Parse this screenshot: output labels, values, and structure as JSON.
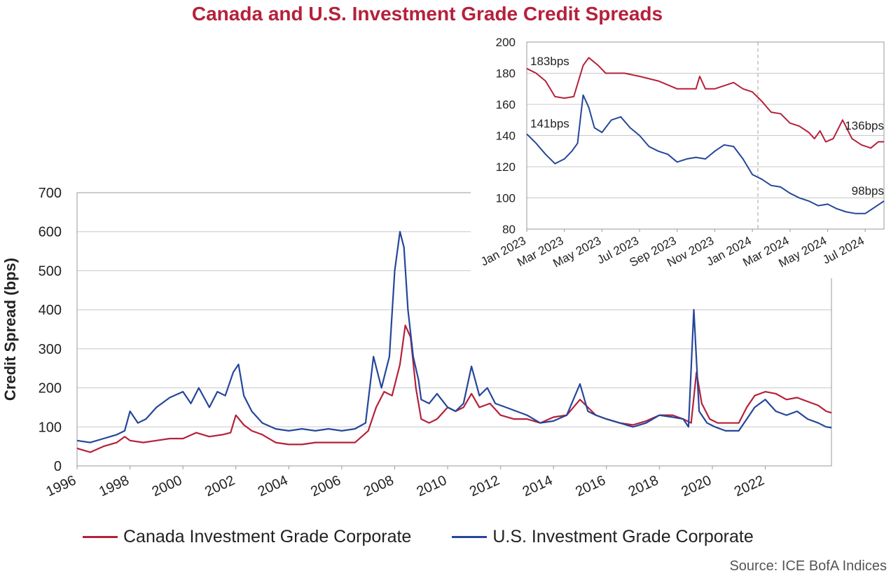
{
  "title": "Canada and U.S. Investment Grade Credit Spreads",
  "source": "Source: ICE BofA Indices",
  "colors": {
    "canada": "#b5213a",
    "us": "#25469a",
    "title": "#b5213a",
    "grid": "#c8c8c8"
  },
  "legend": [
    {
      "label": "Canada Investment Grade Corporate",
      "color": "#b5213a"
    },
    {
      "label": "U.S. Investment Grade Corporate",
      "color": "#25469a"
    }
  ],
  "chart_data": [
    {
      "type": "line",
      "title": "Canada and U.S. Investment Grade Credit Spreads",
      "xlabel": "",
      "ylabel": "Credit Spread (bps)",
      "xlim": [
        1996,
        2024.5
      ],
      "ylim": [
        0,
        700
      ],
      "yticks": [
        0,
        100,
        200,
        300,
        400,
        500,
        600,
        700
      ],
      "xticks": [
        "1996",
        "1998",
        "2000",
        "2002",
        "2004",
        "2006",
        "2008",
        "2010",
        "2012",
        "2014",
        "2016",
        "2018",
        "2020",
        "2022"
      ],
      "grid": "horizontal",
      "legend_position": "bottom",
      "series": [
        {
          "name": "Canada Investment Grade Corporate",
          "x": [
            1996.0,
            1996.5,
            1997.0,
            1997.5,
            1997.8,
            1998.0,
            1998.5,
            1999.0,
            1999.5,
            2000.0,
            2000.5,
            2001.0,
            2001.5,
            2001.8,
            2002.0,
            2002.3,
            2002.6,
            2003.0,
            2003.5,
            2004.0,
            2004.5,
            2005.0,
            2005.5,
            2006.0,
            2006.5,
            2007.0,
            2007.3,
            2007.6,
            2007.9,
            2008.2,
            2008.4,
            2008.6,
            2008.8,
            2009.0,
            2009.3,
            2009.6,
            2010.0,
            2010.3,
            2010.6,
            2010.9,
            2011.2,
            2011.6,
            2012.0,
            2012.5,
            2013.0,
            2013.5,
            2014.0,
            2014.5,
            2015.0,
            2015.3,
            2015.6,
            2016.0,
            2016.5,
            2017.0,
            2017.5,
            2018.0,
            2018.5,
            2018.9,
            2019.2,
            2019.4,
            2019.6,
            2019.9,
            2020.2,
            2020.6,
            2021.0,
            2021.3,
            2021.6,
            2022.0,
            2022.4,
            2022.8,
            2023.2,
            2023.6,
            2024.0,
            2024.3,
            2024.5
          ],
          "values": [
            45,
            35,
            50,
            60,
            75,
            65,
            60,
            65,
            70,
            70,
            85,
            75,
            80,
            85,
            130,
            105,
            90,
            80,
            60,
            55,
            55,
            60,
            60,
            60,
            60,
            90,
            150,
            190,
            180,
            260,
            360,
            330,
            200,
            120,
            110,
            120,
            150,
            140,
            150,
            185,
            150,
            160,
            130,
            120,
            120,
            110,
            125,
            130,
            170,
            150,
            130,
            120,
            110,
            105,
            115,
            130,
            130,
            120,
            110,
            240,
            160,
            120,
            110,
            110,
            110,
            150,
            180,
            190,
            185,
            170,
            175,
            165,
            155,
            140,
            136
          ]
        },
        {
          "name": "U.S. Investment Grade Corporate",
          "x": [
            1996.0,
            1996.5,
            1997.0,
            1997.5,
            1997.8,
            1998.0,
            1998.3,
            1998.6,
            1999.0,
            1999.5,
            2000.0,
            2000.3,
            2000.6,
            2001.0,
            2001.3,
            2001.6,
            2001.9,
            2002.1,
            2002.3,
            2002.6,
            2003.0,
            2003.5,
            2004.0,
            2004.5,
            2005.0,
            2005.5,
            2006.0,
            2006.5,
            2006.9,
            2007.2,
            2007.5,
            2007.8,
            2008.0,
            2008.2,
            2008.35,
            2008.5,
            2008.7,
            2008.9,
            2009.0,
            2009.3,
            2009.6,
            2010.0,
            2010.3,
            2010.6,
            2010.9,
            2011.2,
            2011.5,
            2011.8,
            2012.2,
            2012.6,
            2013.0,
            2013.5,
            2014.0,
            2014.5,
            2015.0,
            2015.3,
            2015.6,
            2016.0,
            2016.5,
            2017.0,
            2017.5,
            2018.0,
            2018.5,
            2018.9,
            2019.1,
            2019.3,
            2019.5,
            2019.8,
            2020.1,
            2020.5,
            2021.0,
            2021.3,
            2021.6,
            2022.0,
            2022.4,
            2022.8,
            2023.2,
            2023.6,
            2024.0,
            2024.3,
            2024.5
          ],
          "values": [
            65,
            60,
            70,
            80,
            90,
            140,
            110,
            120,
            150,
            175,
            190,
            160,
            200,
            150,
            190,
            180,
            240,
            260,
            180,
            140,
            110,
            95,
            90,
            95,
            90,
            95,
            90,
            95,
            110,
            280,
            200,
            280,
            500,
            600,
            560,
            400,
            280,
            220,
            170,
            160,
            185,
            150,
            140,
            160,
            255,
            180,
            200,
            160,
            150,
            140,
            130,
            110,
            115,
            130,
            210,
            140,
            130,
            120,
            110,
            100,
            110,
            130,
            125,
            120,
            100,
            400,
            140,
            110,
            100,
            90,
            90,
            120,
            150,
            170,
            140,
            130,
            140,
            120,
            110,
            100,
            98
          ]
        }
      ]
    },
    {
      "type": "line",
      "title": "",
      "xlabel": "",
      "ylabel": "",
      "xlim": [
        0,
        19
      ],
      "ylim": [
        80,
        200
      ],
      "yticks": [
        80,
        100,
        120,
        140,
        160,
        180,
        200
      ],
      "xticks": [
        "Jan 2023",
        "Mar 2023",
        "May 2023",
        "Jul 2023",
        "Sep 2023",
        "Nov 2023",
        "Jan 2024",
        "Mar 2024",
        "May 2024",
        "Jul 2024"
      ],
      "grid": "horizontal",
      "annotations": [
        "183bps",
        "141bps",
        "136bps",
        "98bps"
      ],
      "series": [
        {
          "name": "Canada Investment Grade Corporate",
          "x": [
            0,
            0.5,
            1.0,
            1.5,
            2.0,
            2.5,
            3.0,
            3.3,
            3.8,
            4.2,
            4.7,
            5.2,
            6.0,
            7.0,
            8.0,
            9.0,
            9.2,
            9.5,
            10.0,
            11.0,
            11.5,
            12.0,
            12.5,
            13.0,
            13.5,
            14.0,
            14.5,
            15.0,
            15.3,
            15.6,
            15.9,
            16.3,
            16.8,
            17.3,
            17.8,
            18.3,
            18.7,
            19.0
          ],
          "values": [
            183,
            180,
            175,
            165,
            164,
            165,
            185,
            190,
            185,
            180,
            180,
            180,
            178,
            175,
            170,
            170,
            178,
            170,
            170,
            174,
            170,
            168,
            162,
            155,
            154,
            148,
            146,
            142,
            138,
            143,
            136,
            138,
            150,
            138,
            134,
            132,
            136,
            136
          ]
        },
        {
          "name": "U.S. Investment Grade Corporate",
          "x": [
            0,
            0.5,
            1.0,
            1.5,
            2.0,
            2.4,
            2.7,
            3.0,
            3.3,
            3.6,
            4.0,
            4.5,
            5.0,
            5.5,
            6.0,
            6.5,
            7.0,
            7.5,
            8.0,
            8.5,
            9.0,
            9.5,
            10.0,
            10.5,
            11.0,
            11.5,
            12.0,
            12.5,
            13.0,
            13.5,
            14.0,
            14.5,
            15.0,
            15.5,
            16.0,
            16.5,
            17.0,
            17.5,
            18.0,
            18.5,
            19.0
          ],
          "values": [
            141,
            135,
            128,
            122,
            125,
            130,
            135,
            166,
            158,
            145,
            142,
            150,
            152,
            145,
            140,
            133,
            130,
            128,
            123,
            125,
            126,
            125,
            130,
            134,
            133,
            125,
            115,
            112,
            108,
            107,
            103,
            100,
            98,
            95,
            96,
            93,
            91,
            90,
            90,
            94,
            98
          ]
        }
      ]
    }
  ]
}
